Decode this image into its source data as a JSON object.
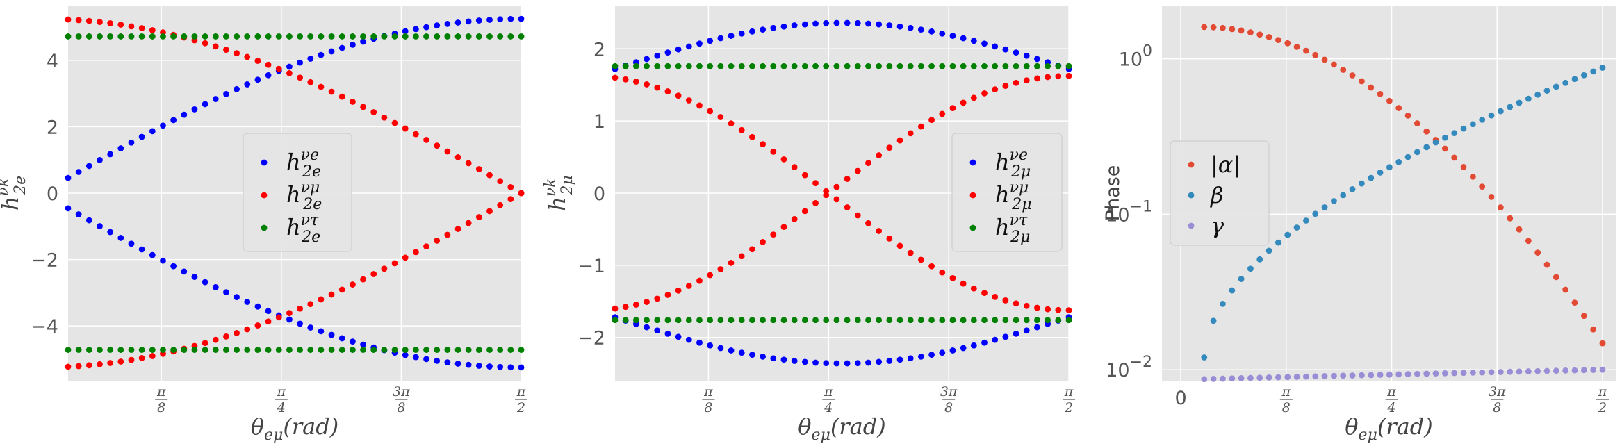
{
  "chart_data": [
    {
      "type": "scatter",
      "ylabel": "h_2e^νk",
      "xlim": [
        0.0873,
        1.5708
      ],
      "ylim": [
        -5.65,
        5.65
      ],
      "yticks": [
        -4,
        -2,
        0,
        2,
        4
      ],
      "ytick_labels": [
        "−4",
        "−2",
        "0",
        "2",
        "4"
      ],
      "xticks": [
        0.3927,
        0.7854,
        1.1781,
        1.5708
      ],
      "xtick_labels": [
        "π/8",
        "π/4",
        "3π/8",
        "π/2"
      ],
      "xlabel": "θ_eμ(rad)",
      "legend": "center-right",
      "grid": true,
      "n_points": 44,
      "series": [
        {
          "name": "h_2e^νe",
          "color": "#0000ff",
          "formula": "sin",
          "amplitude": 5.25,
          "sign": 1
        },
        {
          "name": "h_2e^νμ",
          "color": "#ff0000",
          "formula": "cos",
          "amplitude": 5.25,
          "sign": 1
        },
        {
          "name": "h_2e^ντ",
          "color": "#008000",
          "formula": "const",
          "amplitude": 4.72,
          "sign": 1
        }
      ]
    },
    {
      "type": "scatter",
      "ylabel": "h_2μ^νk",
      "xlim": [
        0.0873,
        1.5708
      ],
      "ylim": [
        -2.6,
        2.6
      ],
      "yticks": [
        -2,
        -1,
        0,
        1,
        2
      ],
      "ytick_labels": [
        "−2",
        "−1",
        "0",
        "1",
        "2"
      ],
      "xticks": [
        0.3927,
        0.7854,
        1.1781,
        1.5708
      ],
      "xtick_labels": [
        "π/8",
        "π/4",
        "3π/8",
        "π/2"
      ],
      "xlabel": "θ_eμ(rad)",
      "legend": "center-right",
      "grid": true,
      "n_points": 44,
      "series": [
        {
          "name": "h_2μ^νe",
          "color": "#0000ff",
          "formula": "arch",
          "amplitude": 2.36,
          "sign": 1
        },
        {
          "name": "h_2μ^νμ",
          "color": "#ff0000",
          "formula": "cos2",
          "amplitude": 1.48,
          "sign": 1
        },
        {
          "name": "h_2μ^ντ",
          "color": "#008000",
          "formula": "const",
          "amplitude": 1.76,
          "sign": 1
        }
      ]
    },
    {
      "type": "scatter",
      "ylabel": "Phase",
      "yscale": "log",
      "xlim": [
        -0.07,
        1.62
      ],
      "ylim": [
        0.0085,
        2.2
      ],
      "yticks": [
        0.01,
        0.1,
        1
      ],
      "xticks": [
        0,
        0.3927,
        0.7854,
        1.1781,
        1.5708
      ],
      "xtick_labels": [
        "0",
        "π/8",
        "π/4",
        "3π/8",
        "π/2"
      ],
      "xlabel": "θ_eμ(rad)",
      "legend": "center-left",
      "grid": true,
      "n_points": 44,
      "series": [
        {
          "name": "|α|",
          "color": "#e24a33"
        },
        {
          "name": "β",
          "color": "#348abd"
        },
        {
          "name": "γ",
          "color": "#988ed5"
        }
      ]
    }
  ]
}
